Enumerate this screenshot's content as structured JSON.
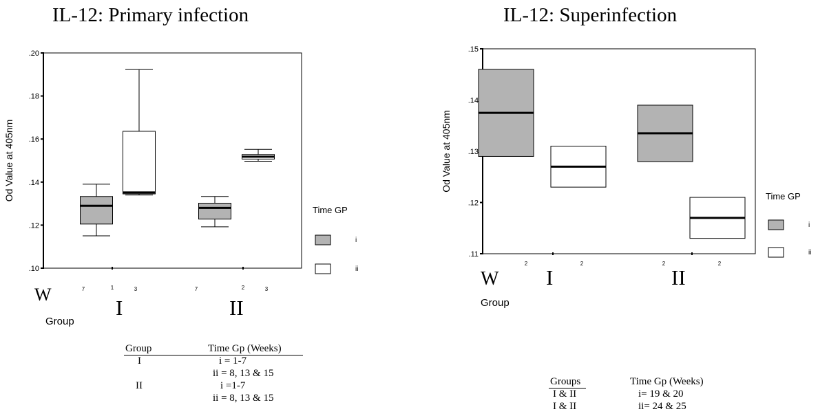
{
  "panels": [
    {
      "title": "IL-12: Primary infection",
      "side_mark": "W",
      "roman_labels": [
        "I",
        "II"
      ],
      "time_gp_table": {
        "headers": [
          "Group",
          "Time Gp (Weeks)"
        ],
        "rows": [
          [
            "I",
            "i = 1-7"
          ],
          [
            "",
            "ii = 8, 13 & 15"
          ],
          [
            "II",
            "i =1-7"
          ],
          [
            "",
            "ii = 8, 13 & 15"
          ]
        ]
      }
    },
    {
      "title": "IL-12: Superinfection",
      "side_mark": "W",
      "roman_labels": [
        "I",
        "II"
      ],
      "time_gp_table": {
        "headers": [
          "Groups",
          "Time Gp (Weeks)"
        ],
        "rows": [
          [
            "I & II",
            "i= 19 & 20"
          ],
          [
            "I & II",
            "ii= 24 & 25"
          ]
        ]
      }
    }
  ],
  "chart_data": [
    {
      "type": "box",
      "ylabel": "Od Value at 405nm",
      "xlabel": "Group",
      "ylim": [
        0.1,
        0.2
      ],
      "yticks": [
        ".10",
        ".12",
        ".14",
        ".16",
        ".18",
        ".20"
      ],
      "ytick_values": [
        0.1,
        0.12,
        0.14,
        0.16,
        0.18,
        0.2
      ],
      "x_tick_labels": [
        "1",
        "2"
      ],
      "legend": {
        "title": "Time GP",
        "entries": [
          {
            "label": "i",
            "color": "#b3b3b3"
          },
          {
            "label": "ii",
            "color": "#ffffff"
          }
        ],
        "placement": "right"
      },
      "boxes": [
        {
          "group": "I",
          "time_gp": "i",
          "n": "7",
          "min": 0.115,
          "q1": 0.1205,
          "median": 0.129,
          "q3": 0.1333,
          "max": 0.139
        },
        {
          "group": "I",
          "time_gp": "ii",
          "n": "3",
          "min": 0.134,
          "q1": 0.1345,
          "median": 0.1352,
          "q3": 0.1636,
          "max": 0.1923
        },
        {
          "group": "II",
          "time_gp": "i",
          "n": "7",
          "min": 0.1192,
          "q1": 0.1228,
          "median": 0.128,
          "q3": 0.1302,
          "max": 0.1333
        },
        {
          "group": "II",
          "time_gp": "ii",
          "n": "3",
          "min": 0.1497,
          "q1": 0.1507,
          "median": 0.1518,
          "q3": 0.1528,
          "max": 0.1552
        }
      ]
    },
    {
      "type": "box",
      "ylabel": "Od Value at 405nm",
      "xlabel": "Group",
      "ylim": [
        0.11,
        0.15
      ],
      "yticks": [
        ".11",
        ".12",
        ".13",
        ".14",
        ".15"
      ],
      "ytick_values": [
        0.11,
        0.12,
        0.13,
        0.14,
        0.15
      ],
      "legend": {
        "title": "Time GP",
        "entries": [
          {
            "label": "i",
            "color": "#b3b3b3"
          },
          {
            "label": "ii",
            "color": "#ffffff"
          }
        ],
        "placement": "right"
      },
      "boxes": [
        {
          "group": "I",
          "time_gp": "i",
          "n": "2",
          "q1": 0.129,
          "median": 0.1375,
          "q3": 0.146
        },
        {
          "group": "I",
          "time_gp": "ii",
          "n": "2",
          "q1": 0.123,
          "median": 0.127,
          "q3": 0.131
        },
        {
          "group": "II",
          "time_gp": "i",
          "n": "2",
          "q1": 0.128,
          "median": 0.1335,
          "q3": 0.139
        },
        {
          "group": "II",
          "time_gp": "ii",
          "n": "2",
          "q1": 0.113,
          "median": 0.117,
          "q3": 0.121
        }
      ]
    }
  ]
}
